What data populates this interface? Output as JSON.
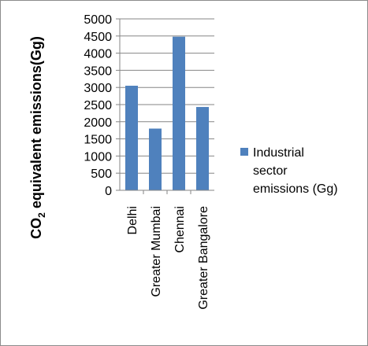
{
  "chart_data": {
    "type": "bar",
    "title": "",
    "xlabel": "",
    "ylabel": {
      "main": "CO",
      "sub": "2",
      "rest": " equivalent emissions(Gg)"
    },
    "categories": [
      "Delhi",
      "Greater Mumbai",
      "Chennai",
      "Greater Bangalore"
    ],
    "series": [
      {
        "name": "Industrial sector emissions (Gg)",
        "values": [
          3050,
          1800,
          4480,
          2430
        ],
        "color": "#4f81bd"
      }
    ],
    "ylim": [
      0,
      5000
    ],
    "yticks": [
      0,
      500,
      1000,
      1500,
      2000,
      2500,
      3000,
      3500,
      4000,
      4500,
      5000
    ],
    "grid": true,
    "legend_position": "right",
    "legend_lines": [
      "Industrial",
      "sector",
      "emissions (Gg)"
    ]
  }
}
